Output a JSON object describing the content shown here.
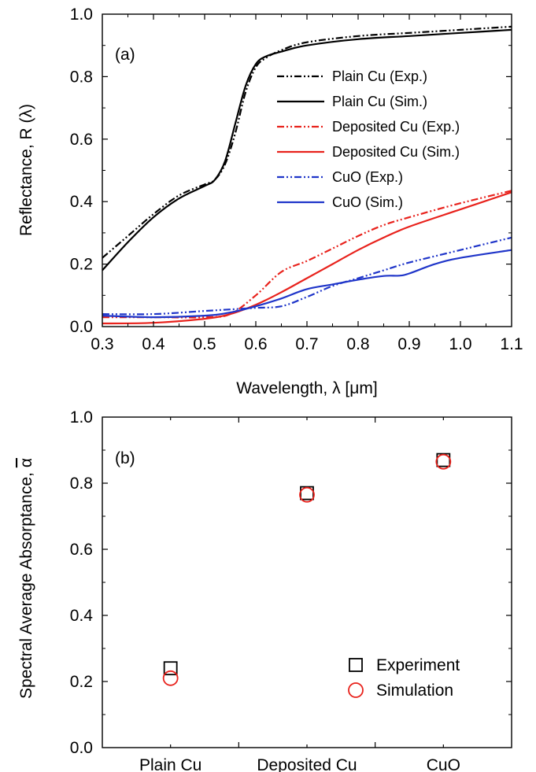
{
  "chart_data": [
    {
      "type": "line",
      "panel_label": "(a)",
      "xlabel": "Wavelength, λ [μm]",
      "ylabel": "Reflectance, R (λ)",
      "xlim": [
        0.3,
        1.1
      ],
      "ylim": [
        0.0,
        1.0
      ],
      "xticks": [
        "0.3",
        "0.4",
        "0.5",
        "0.6",
        "0.7",
        "0.8",
        "0.9",
        "1.0",
        "1.1"
      ],
      "yticks": [
        "0.0",
        "0.2",
        "0.4",
        "0.6",
        "0.8",
        "1.0"
      ],
      "legend_position": "top-right",
      "grid": false,
      "series": [
        {
          "name": "Plain Cu (Exp.)",
          "color": "#000000",
          "style": "dash-dot-dot",
          "x": [
            0.3,
            0.35,
            0.4,
            0.45,
            0.5,
            0.52,
            0.54,
            0.56,
            0.58,
            0.6,
            0.62,
            0.65,
            0.7,
            0.8,
            0.9,
            1.0,
            1.1
          ],
          "y": [
            0.22,
            0.29,
            0.36,
            0.42,
            0.455,
            0.47,
            0.52,
            0.62,
            0.75,
            0.83,
            0.86,
            0.885,
            0.91,
            0.93,
            0.94,
            0.95,
            0.96
          ]
        },
        {
          "name": "Plain Cu (Sim.)",
          "color": "#000000",
          "style": "solid",
          "x": [
            0.3,
            0.35,
            0.4,
            0.45,
            0.5,
            0.52,
            0.54,
            0.56,
            0.58,
            0.6,
            0.62,
            0.65,
            0.7,
            0.8,
            0.9,
            1.0,
            1.1
          ],
          "y": [
            0.18,
            0.27,
            0.35,
            0.41,
            0.45,
            0.47,
            0.53,
            0.65,
            0.77,
            0.84,
            0.865,
            0.88,
            0.9,
            0.92,
            0.93,
            0.94,
            0.95
          ]
        },
        {
          "name": "Deposited Cu (Exp.)",
          "color": "#e8221c",
          "style": "dash-dot-dot",
          "x": [
            0.3,
            0.4,
            0.5,
            0.55,
            0.6,
            0.65,
            0.7,
            0.75,
            0.8,
            0.85,
            0.9,
            1.0,
            1.1
          ],
          "y": [
            0.03,
            0.03,
            0.03,
            0.04,
            0.1,
            0.175,
            0.21,
            0.25,
            0.29,
            0.325,
            0.35,
            0.395,
            0.435
          ]
        },
        {
          "name": "Deposited Cu (Sim.)",
          "color": "#e8221c",
          "style": "solid",
          "x": [
            0.3,
            0.4,
            0.5,
            0.55,
            0.6,
            0.65,
            0.7,
            0.75,
            0.8,
            0.85,
            0.9,
            1.0,
            1.1
          ],
          "y": [
            0.01,
            0.012,
            0.025,
            0.04,
            0.07,
            0.11,
            0.155,
            0.2,
            0.245,
            0.285,
            0.32,
            0.375,
            0.43
          ]
        },
        {
          "name": "CuO (Exp.)",
          "color": "#1f35c9",
          "style": "dash-dot-dot",
          "x": [
            0.3,
            0.4,
            0.5,
            0.55,
            0.6,
            0.65,
            0.7,
            0.75,
            0.8,
            0.85,
            0.9,
            1.0,
            1.1
          ],
          "y": [
            0.04,
            0.04,
            0.05,
            0.055,
            0.06,
            0.065,
            0.095,
            0.13,
            0.155,
            0.18,
            0.205,
            0.245,
            0.285
          ]
        },
        {
          "name": "CuO (Sim.)",
          "color": "#1f35c9",
          "style": "solid",
          "x": [
            0.3,
            0.4,
            0.5,
            0.55,
            0.6,
            0.65,
            0.7,
            0.75,
            0.8,
            0.85,
            0.88,
            0.9,
            0.95,
            1.0,
            1.1
          ],
          "y": [
            0.035,
            0.03,
            0.035,
            0.045,
            0.065,
            0.09,
            0.12,
            0.135,
            0.15,
            0.162,
            0.163,
            0.17,
            0.2,
            0.22,
            0.245
          ]
        }
      ]
    },
    {
      "type": "scatter",
      "panel_label": "(b)",
      "xlabel": "",
      "ylabel": "Spectral Average Absorptance, ",
      "ylabel_symbol": "α",
      "categories": [
        "Plain Cu",
        "Deposited Cu",
        "CuO"
      ],
      "ylim": [
        0.0,
        1.0
      ],
      "yticks": [
        "0.0",
        "0.2",
        "0.4",
        "0.6",
        "0.8",
        "1.0"
      ],
      "legend_position": "bottom-right",
      "grid": false,
      "series": [
        {
          "name": "Experiment",
          "marker": "square",
          "color": "#000000",
          "values": [
            0.24,
            0.77,
            0.87
          ]
        },
        {
          "name": "Simulation",
          "marker": "circle",
          "color": "#e8221c",
          "values": [
            0.21,
            0.765,
            0.865
          ]
        }
      ]
    }
  ]
}
